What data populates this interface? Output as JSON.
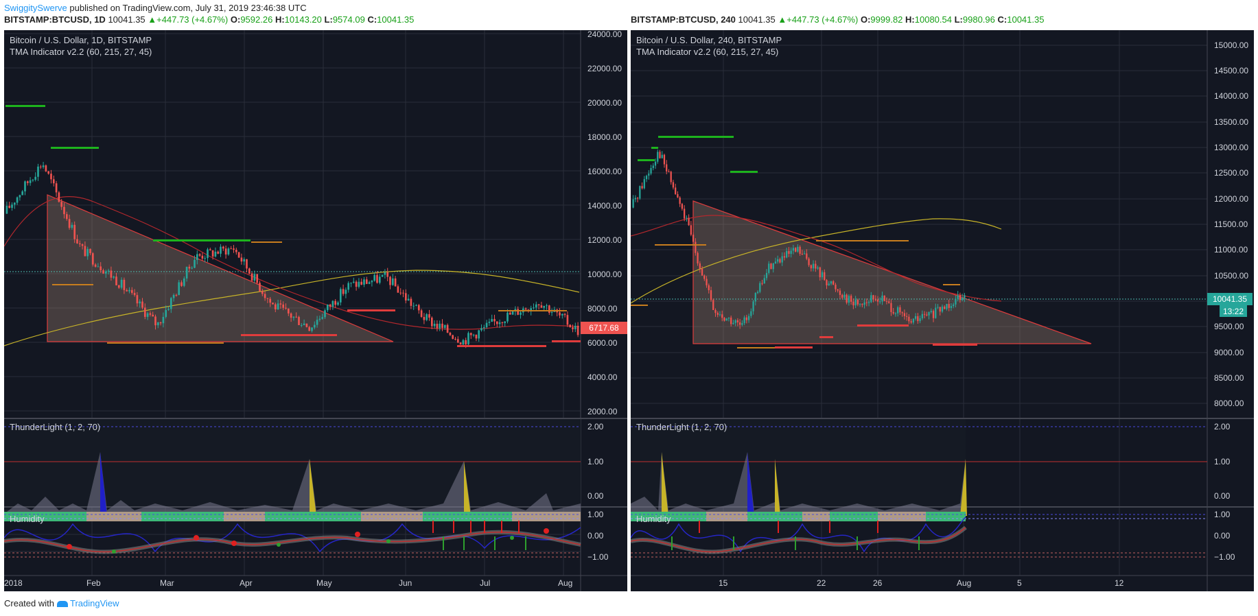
{
  "header": {
    "author": "SwiggitySwerve",
    "published_text": "published on TradingView.com, July 31, 2019 23:46:38 UTC"
  },
  "left": {
    "ticker": "BITSTAMP:BTCUSD, 1D",
    "price": "10041.35",
    "arrow": "▲",
    "change": "+447.73 (+4.67%)",
    "o_label": "O:",
    "o": "9592.26",
    "h_label": "H:",
    "h": "10143.20",
    "l_label": "L:",
    "l": "9574.09",
    "c_label": "C:",
    "c": "10041.35",
    "title": "Bitcoin / U.S. Dollar, 1D, BITSTAMP",
    "indicator": "TMA Indicator v2.2 (60, 215, 27, 45)",
    "price_axis": [
      "24000.00",
      "22000.00",
      "20000.00",
      "18000.00",
      "16000.00",
      "14000.00",
      "12000.00",
      "10000.00",
      "8000.00",
      "6000.00",
      "4000.00",
      "2000.00"
    ],
    "last_price_label": "6717.68",
    "thunder_title": "ThunderLight (1, 2, 70)",
    "thunder_axis": [
      "2.00",
      "1.00",
      "0.00"
    ],
    "humidity_title": "Humidity",
    "humidity_axis": [
      "1.00",
      "0.00",
      "−1.00"
    ],
    "time_axis": [
      "2018",
      "Feb",
      "Mar",
      "Apr",
      "May",
      "Jun",
      "Jul",
      "Aug"
    ]
  },
  "right": {
    "ticker": "BITSTAMP:BTCUSD, 240",
    "price": "10041.35",
    "arrow": "▲",
    "change": "+447.73 (+4.67%)",
    "o_label": "O:",
    "o": "9999.82",
    "h_label": "H:",
    "h": "10080.54",
    "l_label": "L:",
    "l": "9980.96",
    "c_label": "C:",
    "c": "10041.35",
    "title": "Bitcoin / U.S. Dollar, 240, BITSTAMP",
    "indicator": "TMA Indicator v2.2 (60, 215, 27, 45)",
    "price_axis": [
      "15000.00",
      "14500.00",
      "14000.00",
      "13500.00",
      "13000.00",
      "12500.00",
      "12000.00",
      "11500.00",
      "11000.00",
      "10500.00",
      "10000.00",
      "9500.00",
      "9000.00",
      "8500.00",
      "8000.00"
    ],
    "last_price_label": "10041.35",
    "countdown_label": "13:22",
    "thunder_title": "ThunderLight (1, 2, 70)",
    "thunder_axis": [
      "2.00",
      "1.00",
      "0.00"
    ],
    "humidity_title": "Humidity",
    "humidity_axis": [
      "1.00",
      "0.00",
      "−1.00"
    ],
    "time_axis": [
      "15",
      "22",
      "26",
      "Aug",
      "5",
      "12"
    ]
  },
  "footer": {
    "created_with": "Created with",
    "brand": "TradingView"
  },
  "colors": {
    "background": "#131722",
    "up": "#26a69a",
    "down": "#ef5350",
    "grid": "#2a2e39",
    "last_price": "#ef5350",
    "current_price": "#26a69a",
    "green_dots": "#1db31d",
    "orange_dots": "#c87d1e",
    "ma_yellow": "#c8b428",
    "ma_red": "#b4282d"
  },
  "chart_data": [
    {
      "type": "candlestick",
      "title": "Bitcoin / U.S. Dollar, 1D, BITSTAMP",
      "ylim": [
        2000,
        24000
      ],
      "x_ticks": [
        "2018",
        "Feb",
        "Mar",
        "Apr",
        "May",
        "Jun",
        "Jul",
        "Aug"
      ],
      "approx_close_path": [
        {
          "x": "2018-01-01",
          "y": 13500
        },
        {
          "x": "2018-01-08",
          "y": 16500
        },
        {
          "x": "2018-01-15",
          "y": 11500
        },
        {
          "x": "2018-02-01",
          "y": 9500
        },
        {
          "x": "2018-02-06",
          "y": 7000
        },
        {
          "x": "2018-02-20",
          "y": 11000
        },
        {
          "x": "2018-03-05",
          "y": 11500
        },
        {
          "x": "2018-03-18",
          "y": 8200
        },
        {
          "x": "2018-04-01",
          "y": 6900
        },
        {
          "x": "2018-04-24",
          "y": 9300
        },
        {
          "x": "2018-05-05",
          "y": 9800
        },
        {
          "x": "2018-05-28",
          "y": 7400
        },
        {
          "x": "2018-06-24",
          "y": 6100
        },
        {
          "x": "2018-07-20",
          "y": 7400
        },
        {
          "x": "2018-07-25",
          "y": 8400
        },
        {
          "x": "2018-08-06",
          "y": 6700
        }
      ]
    },
    {
      "type": "candlestick",
      "title": "Bitcoin / U.S. Dollar, 240, BITSTAMP",
      "ylim": [
        7700,
        15200
      ],
      "x_ticks": [
        "15",
        "22",
        "26",
        "Aug",
        "5",
        "12"
      ],
      "approx_close_path": [
        {
          "x": "Jul 8",
          "y": 11800
        },
        {
          "x": "Jul 10",
          "y": 13000
        },
        {
          "x": "Jul 12",
          "y": 11500
        },
        {
          "x": "Jul 16",
          "y": 9600
        },
        {
          "x": "Jul 17",
          "y": 9300
        },
        {
          "x": "Jul 19",
          "y": 10600
        },
        {
          "x": "Jul 20",
          "y": 10900
        },
        {
          "x": "Jul 22",
          "y": 10300
        },
        {
          "x": "Jul 24",
          "y": 9800
        },
        {
          "x": "Jul 26",
          "y": 9900
        },
        {
          "x": "Jul 28",
          "y": 9400
        },
        {
          "x": "Jul 30",
          "y": 9600
        },
        {
          "x": "Jul 31",
          "y": 10041.35
        }
      ]
    }
  ]
}
